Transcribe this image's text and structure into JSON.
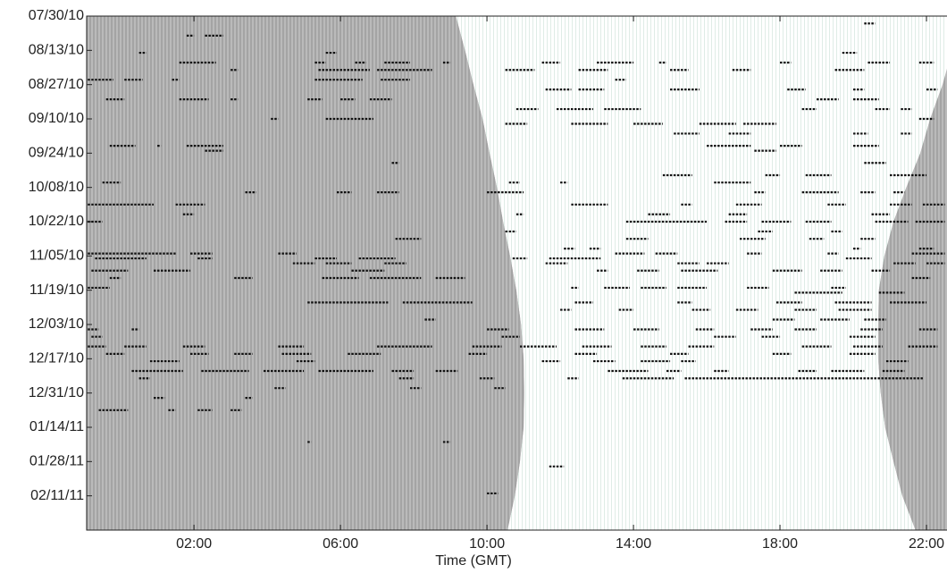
{
  "chart_data": {
    "type": "raster",
    "xlabel": "Time (GMT)",
    "xlim": [
      -0.93,
      22.56
    ],
    "xticks": [
      {
        "value": 2,
        "label": "02:00"
      },
      {
        "value": 6,
        "label": "06:00"
      },
      {
        "value": 10,
        "label": "10:00"
      },
      {
        "value": 14,
        "label": "14:00"
      },
      {
        "value": 18,
        "label": "18:00"
      },
      {
        "value": 22,
        "label": "22:00"
      }
    ],
    "ylim": [
      0,
      210
    ],
    "yticks": [
      {
        "value": 0,
        "label": "07/30/10"
      },
      {
        "value": 14,
        "label": "08/13/10"
      },
      {
        "value": 28,
        "label": "08/27/10"
      },
      {
        "value": 42,
        "label": "09/10/10"
      },
      {
        "value": 56,
        "label": "09/24/10"
      },
      {
        "value": 70,
        "label": "10/08/10"
      },
      {
        "value": 84,
        "label": "10/22/10"
      },
      {
        "value": 98,
        "label": "11/05/10"
      },
      {
        "value": 112,
        "label": "11/19/10"
      },
      {
        "value": 126,
        "label": "12/03/10"
      },
      {
        "value": 140,
        "label": "12/17/10"
      },
      {
        "value": 154,
        "label": "12/31/10"
      },
      {
        "value": 168,
        "label": "01/14/11"
      },
      {
        "value": 182,
        "label": "01/28/11"
      },
      {
        "value": 196,
        "label": "02/11/11"
      }
    ],
    "event_color": "#111111",
    "night_color": "#a9a9a9",
    "day_color": "#ffffff",
    "night": {
      "day": [
        0,
        14,
        28,
        42,
        56,
        70,
        84,
        98,
        112,
        126,
        140,
        154,
        168,
        182,
        196,
        210
      ],
      "sunrise": [
        9.15,
        9.4,
        9.63,
        9.88,
        10.07,
        10.27,
        10.44,
        10.63,
        10.8,
        10.93,
        11.0,
        11.02,
        11.0,
        10.9,
        10.76,
        10.56
      ],
      "sunset": [
        23.0,
        22.7,
        22.44,
        22.1,
        21.83,
        21.45,
        21.1,
        20.85,
        20.7,
        20.68,
        20.68,
        20.75,
        20.87,
        21.1,
        21.34,
        21.7
      ]
    },
    "events": [
      [
        8,
        1.8,
        2.0
      ],
      [
        8,
        2.3,
        2.8
      ],
      [
        3,
        20.3,
        20.6
      ],
      [
        15,
        0.5,
        0.7
      ],
      [
        15,
        5.6,
        5.9
      ],
      [
        15,
        19.7,
        20.1
      ],
      [
        19,
        1.6,
        2.6
      ],
      [
        19,
        5.3,
        5.6
      ],
      [
        19,
        6.4,
        6.7
      ],
      [
        19,
        7.2,
        7.9
      ],
      [
        19,
        8.8,
        9.0
      ],
      [
        19,
        11.5,
        12.0
      ],
      [
        19,
        13.0,
        14.0
      ],
      [
        19,
        14.7,
        14.9
      ],
      [
        19,
        18.0,
        18.3
      ],
      [
        19,
        20.4,
        21.0
      ],
      [
        19,
        21.8,
        22.2
      ],
      [
        22,
        5.4,
        6.8
      ],
      [
        22,
        3.0,
        3.2
      ],
      [
        22,
        7.0,
        8.5
      ],
      [
        22,
        10.5,
        11.3
      ],
      [
        22,
        12.5,
        13.3
      ],
      [
        22,
        15.0,
        15.5
      ],
      [
        22,
        16.7,
        17.2
      ],
      [
        22,
        19.5,
        20.3
      ],
      [
        26,
        -0.9,
        -0.2
      ],
      [
        26,
        0.1,
        0.6
      ],
      [
        26,
        1.4,
        1.6
      ],
      [
        26,
        5.3,
        6.6
      ],
      [
        26,
        7.1,
        7.9
      ],
      [
        26,
        13.5,
        13.8
      ],
      [
        30,
        11.6,
        12.3
      ],
      [
        30,
        12.5,
        13.2
      ],
      [
        30,
        15.0,
        15.8
      ],
      [
        30,
        18.2,
        18.7
      ],
      [
        30,
        20.0,
        20.3
      ],
      [
        30,
        22.0,
        22.3
      ],
      [
        34,
        -0.4,
        0.1
      ],
      [
        34,
        1.6,
        2.4
      ],
      [
        34,
        3.0,
        3.2
      ],
      [
        34,
        5.1,
        5.5
      ],
      [
        34,
        6.0,
        6.4
      ],
      [
        34,
        6.8,
        7.4
      ],
      [
        34,
        19.0,
        19.6
      ],
      [
        34,
        20.0,
        20.7
      ],
      [
        38,
        10.8,
        11.4
      ],
      [
        38,
        11.9,
        12.9
      ],
      [
        38,
        13.2,
        14.2
      ],
      [
        38,
        18.6,
        19.0
      ],
      [
        38,
        20.6,
        21.0
      ],
      [
        38,
        21.3,
        21.6
      ],
      [
        42,
        4.1,
        4.3
      ],
      [
        42,
        5.6,
        6.9
      ],
      [
        42,
        21.8,
        22.2
      ],
      [
        44,
        10.5,
        11.1
      ],
      [
        44,
        12.3,
        13.3
      ],
      [
        44,
        14.0,
        14.8
      ],
      [
        44,
        15.8,
        16.8
      ],
      [
        44,
        17.0,
        17.9
      ],
      [
        48,
        15.1,
        15.8
      ],
      [
        48,
        16.6,
        17.2
      ],
      [
        48,
        20.0,
        20.4
      ],
      [
        48,
        21.3,
        21.6
      ],
      [
        53,
        -0.3,
        0.4
      ],
      [
        53,
        1.0,
        1.1
      ],
      [
        53,
        1.8,
        2.8
      ],
      [
        53,
        16.0,
        17.2
      ],
      [
        53,
        18.0,
        18.6
      ],
      [
        53,
        20.0,
        20.7
      ],
      [
        55,
        2.3,
        2.8
      ],
      [
        55,
        17.3,
        17.9
      ],
      [
        60,
        20.3,
        20.9
      ],
      [
        60,
        7.4,
        7.6
      ],
      [
        65,
        14.8,
        15.6
      ],
      [
        65,
        17.6,
        18.0
      ],
      [
        65,
        18.7,
        19.4
      ],
      [
        65,
        21.0,
        22.0
      ],
      [
        68,
        -0.5,
        0.0
      ],
      [
        68,
        12.0,
        12.2
      ],
      [
        68,
        10.6,
        10.9
      ],
      [
        68,
        16.2,
        17.2
      ],
      [
        72,
        5.9,
        6.3
      ],
      [
        72,
        7.0,
        7.6
      ],
      [
        72,
        3.4,
        3.7
      ],
      [
        72,
        10.0,
        11.0
      ],
      [
        72,
        17.3,
        17.6
      ],
      [
        72,
        18.6,
        19.6
      ],
      [
        72,
        20.2,
        20.6
      ],
      [
        72,
        21.1,
        21.4
      ],
      [
        77,
        -0.9,
        0.9
      ],
      [
        77,
        1.5,
        2.3
      ],
      [
        77,
        12.3,
        13.3
      ],
      [
        77,
        15.3,
        15.6
      ],
      [
        77,
        16.8,
        17.5
      ],
      [
        77,
        19.3,
        19.8
      ],
      [
        77,
        21.0,
        21.6
      ],
      [
        77,
        21.9,
        22.5
      ],
      [
        81,
        1.7,
        2.0
      ],
      [
        81,
        10.8,
        11.0
      ],
      [
        81,
        14.4,
        15.0
      ],
      [
        81,
        16.6,
        17.1
      ],
      [
        81,
        20.5,
        21.0
      ],
      [
        84,
        -0.9,
        -0.5
      ],
      [
        84,
        13.8,
        16.0
      ],
      [
        84,
        16.5,
        17.1
      ],
      [
        84,
        17.5,
        18.3
      ],
      [
        84,
        18.7,
        19.4
      ],
      [
        84,
        20.6,
        21.5
      ],
      [
        84,
        21.7,
        22.5
      ],
      [
        88,
        17.4,
        17.8
      ],
      [
        88,
        19.4,
        19.7
      ],
      [
        88,
        10.5,
        10.8
      ],
      [
        91,
        7.5,
        8.2
      ],
      [
        91,
        13.8,
        14.4
      ],
      [
        91,
        16.9,
        17.6
      ],
      [
        91,
        18.8,
        19.2
      ],
      [
        91,
        20.2,
        20.6
      ],
      [
        95,
        12.1,
        12.4
      ],
      [
        95,
        12.8,
        13.1
      ],
      [
        95,
        20.0,
        20.2
      ],
      [
        95,
        21.8,
        22.2
      ],
      [
        97,
        -0.9,
        1.5
      ],
      [
        97,
        1.9,
        2.5
      ],
      [
        97,
        4.3,
        4.8
      ],
      [
        97,
        13.5,
        14.3
      ],
      [
        97,
        14.6,
        15.2
      ],
      [
        97,
        17.1,
        17.5
      ],
      [
        97,
        19.3,
        19.6
      ],
      [
        97,
        21.6,
        22.5
      ],
      [
        99,
        -0.7,
        0.7
      ],
      [
        99,
        2.1,
        2.5
      ],
      [
        99,
        5.3,
        5.9
      ],
      [
        99,
        6.5,
        7.5
      ],
      [
        99,
        10.7,
        11.1
      ],
      [
        99,
        11.7,
        13.1
      ],
      [
        99,
        19.8,
        20.5
      ],
      [
        101,
        4.7,
        5.3
      ],
      [
        101,
        5.6,
        6.3
      ],
      [
        101,
        7.2,
        7.8
      ],
      [
        101,
        11.6,
        12.2
      ],
      [
        101,
        15.2,
        15.8
      ],
      [
        101,
        16.0,
        16.6
      ],
      [
        101,
        21.1,
        21.7
      ],
      [
        101,
        22.0,
        22.5
      ],
      [
        104,
        -0.8,
        0.2
      ],
      [
        104,
        0.9,
        1.9
      ],
      [
        104,
        6.3,
        7.2
      ],
      [
        104,
        13.0,
        13.3
      ],
      [
        104,
        14.1,
        14.7
      ],
      [
        104,
        15.3,
        16.3
      ],
      [
        104,
        17.8,
        18.6
      ],
      [
        104,
        19.1,
        19.7
      ],
      [
        104,
        20.5,
        21.0
      ],
      [
        107,
        -0.3,
        0.0
      ],
      [
        107,
        3.1,
        3.6
      ],
      [
        107,
        5.5,
        6.5
      ],
      [
        107,
        6.8,
        8.2
      ],
      [
        107,
        8.6,
        9.4
      ],
      [
        107,
        21.6,
        22.1
      ],
      [
        111,
        -0.9,
        -0.3
      ],
      [
        111,
        12.3,
        12.5
      ],
      [
        111,
        13.2,
        13.9
      ],
      [
        111,
        14.2,
        14.9
      ],
      [
        111,
        15.2,
        16.0
      ],
      [
        111,
        17.1,
        17.7
      ],
      [
        111,
        19.4,
        19.8
      ],
      [
        113,
        18.4,
        19.7
      ],
      [
        113,
        20.7,
        21.4
      ],
      [
        117,
        5.1,
        7.3
      ],
      [
        117,
        7.7,
        9.6
      ],
      [
        117,
        12.4,
        12.9
      ],
      [
        117,
        15.2,
        15.6
      ],
      [
        117,
        17.9,
        18.6
      ],
      [
        117,
        19.5,
        20.5
      ],
      [
        117,
        21.0,
        22.0
      ],
      [
        120,
        12.0,
        12.3
      ],
      [
        120,
        13.6,
        14.0
      ],
      [
        120,
        15.6,
        16.1
      ],
      [
        120,
        16.8,
        17.4
      ],
      [
        120,
        18.4,
        19.0
      ],
      [
        120,
        19.6,
        20.5
      ],
      [
        124,
        8.3,
        8.6
      ],
      [
        124,
        17.8,
        18.4
      ],
      [
        124,
        19.1,
        19.9
      ],
      [
        124,
        20.3,
        20.9
      ],
      [
        128,
        -0.9,
        -0.6
      ],
      [
        128,
        0.3,
        0.5
      ],
      [
        128,
        10.0,
        10.6
      ],
      [
        128,
        12.4,
        13.2
      ],
      [
        128,
        14.0,
        14.7
      ],
      [
        128,
        15.7,
        16.2
      ],
      [
        128,
        17.2,
        17.8
      ],
      [
        128,
        18.4,
        19.0
      ],
      [
        128,
        20.2,
        20.8
      ],
      [
        128,
        21.8,
        22.3
      ],
      [
        131,
        -0.8,
        -0.5
      ],
      [
        131,
        10.4,
        10.9
      ],
      [
        131,
        16.2,
        16.8
      ],
      [
        131,
        17.5,
        18.0
      ],
      [
        131,
        19.9,
        20.6
      ],
      [
        135,
        -0.9,
        -0.4
      ],
      [
        135,
        0.1,
        0.7
      ],
      [
        135,
        1.7,
        2.3
      ],
      [
        135,
        4.3,
        5.0
      ],
      [
        135,
        7.0,
        8.5
      ],
      [
        135,
        9.6,
        10.4
      ],
      [
        135,
        10.9,
        11.9
      ],
      [
        135,
        12.6,
        13.4
      ],
      [
        135,
        14.2,
        14.9
      ],
      [
        135,
        15.5,
        16.2
      ],
      [
        135,
        18.6,
        19.4
      ],
      [
        135,
        20.0,
        20.8
      ],
      [
        135,
        21.5,
        22.3
      ],
      [
        138,
        -0.4,
        0.1
      ],
      [
        138,
        1.9,
        2.4
      ],
      [
        138,
        3.1,
        3.6
      ],
      [
        138,
        4.4,
        5.2
      ],
      [
        138,
        6.2,
        7.1
      ],
      [
        138,
        9.5,
        10.0
      ],
      [
        138,
        12.4,
        13.0
      ],
      [
        138,
        15.0,
        15.5
      ],
      [
        138,
        17.8,
        18.3
      ],
      [
        138,
        19.9,
        20.6
      ],
      [
        141,
        0.8,
        1.6
      ],
      [
        141,
        4.8,
        5.3
      ],
      [
        141,
        11.5,
        12.0
      ],
      [
        141,
        12.9,
        13.5
      ],
      [
        141,
        14.2,
        15.0
      ],
      [
        141,
        15.3,
        15.7
      ],
      [
        141,
        20.9,
        21.5
      ],
      [
        145,
        0.3,
        1.7
      ],
      [
        145,
        2.2,
        3.5
      ],
      [
        145,
        3.9,
        5.0
      ],
      [
        145,
        5.4,
        6.9
      ],
      [
        145,
        7.4,
        8.0
      ],
      [
        145,
        8.6,
        9.2
      ],
      [
        145,
        13.3,
        14.4
      ],
      [
        145,
        14.9,
        15.3
      ],
      [
        145,
        16.2,
        16.6
      ],
      [
        145,
        18.5,
        19.0
      ],
      [
        145,
        19.4,
        20.3
      ],
      [
        145,
        20.8,
        21.4
      ],
      [
        148,
        12.2,
        12.5
      ],
      [
        148,
        13.7,
        15.1
      ],
      [
        148,
        15.4,
        21.9
      ],
      [
        148,
        0.5,
        0.8
      ],
      [
        148,
        7.6,
        8.0
      ],
      [
        148,
        9.8,
        10.2
      ],
      [
        152,
        4.2,
        4.5
      ],
      [
        152,
        7.9,
        8.2
      ],
      [
        152,
        10.2,
        10.5
      ],
      [
        156,
        0.9,
        1.2
      ],
      [
        156,
        3.4,
        3.6
      ],
      [
        161,
        -0.6,
        0.2
      ],
      [
        161,
        1.3,
        1.5
      ],
      [
        161,
        2.1,
        2.5
      ],
      [
        161,
        3.0,
        3.3
      ],
      [
        174,
        5.1,
        5.2
      ],
      [
        174,
        8.8,
        9.0
      ],
      [
        184,
        11.7,
        12.1
      ],
      [
        195,
        10.0,
        10.3
      ]
    ]
  }
}
